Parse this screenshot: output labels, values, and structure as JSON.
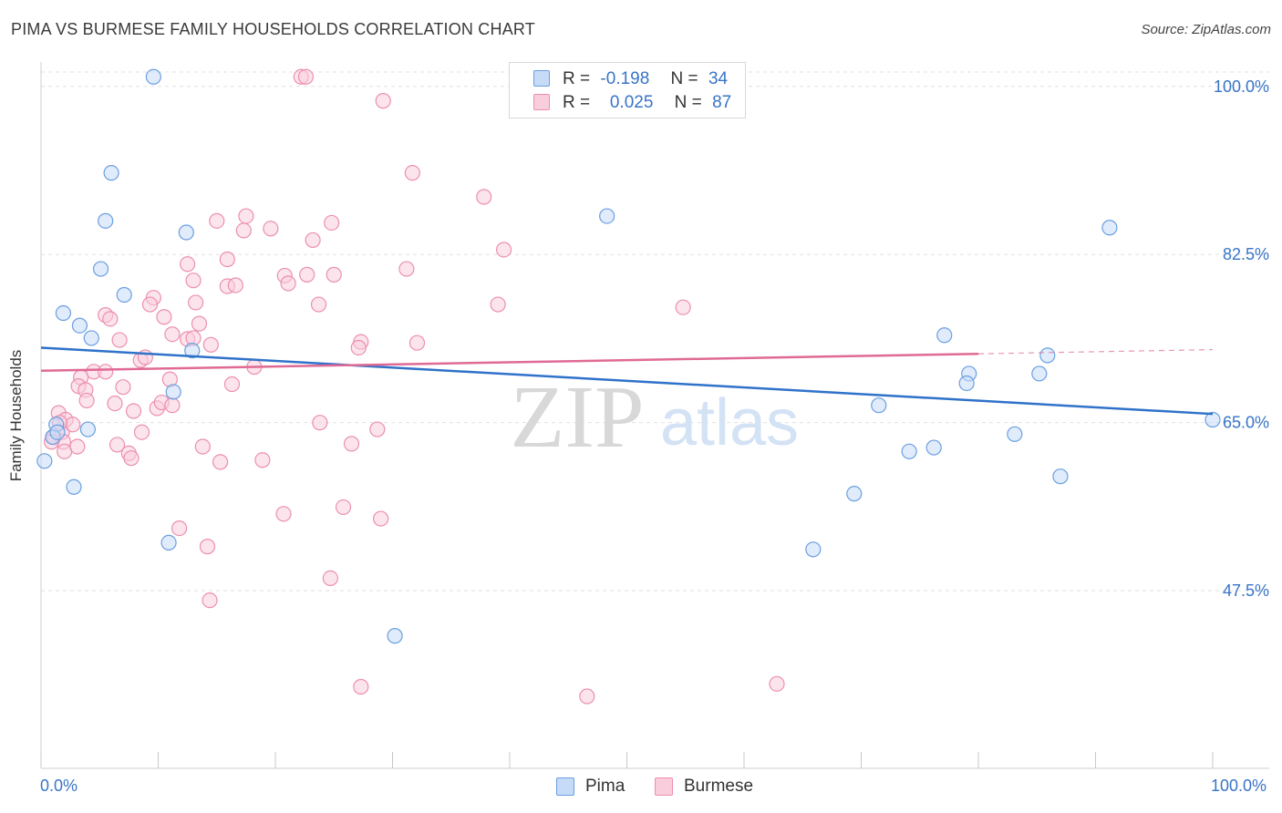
{
  "title": "PIMA VS BURMESE FAMILY HOUSEHOLDS CORRELATION CHART",
  "source": "Source: ZipAtlas.com",
  "watermark": {
    "zip": "ZIP",
    "atlas": "atlas"
  },
  "colors": {
    "pima": "#6a9fe0",
    "pima_fill": "#c6dbf7",
    "pima_line": "#2f72c9",
    "burmese": "#ec8fb0",
    "burmese_fill": "#f9cddc",
    "burmese_line": "#e06a95",
    "axis_label": "#3874c8",
    "grid": "#e0e0e0"
  },
  "legend_top": [
    {
      "series": "pima",
      "r_label": "R =",
      "r_value": "-0.198",
      "n_label": "N =",
      "n_value": "34"
    },
    {
      "series": "burmese",
      "r_label": "R =",
      "r_value": "0.025",
      "n_label": "N =",
      "n_value": "87"
    }
  ],
  "chart_data": {
    "type": "scatter",
    "title": "PIMA VS BURMESE FAMILY HOUSEHOLDS CORRELATION CHART",
    "xlabel": "",
    "ylabel": "Family Households",
    "xlim": [
      0,
      100
    ],
    "ylim": [
      31,
      101.5
    ],
    "x_tick_labels": [
      "0.0%",
      "100.0%"
    ],
    "y_ticks": [
      {
        "value": 100.0,
        "label": "100.0%"
      },
      {
        "value": 82.5,
        "label": "82.5%"
      },
      {
        "value": 65.0,
        "label": "65.0%"
      },
      {
        "value": 47.5,
        "label": "47.5%"
      }
    ],
    "grid": true,
    "legend_position": "bottom",
    "series": [
      {
        "name": "Pima",
        "key": "pima",
        "trend": {
          "x1": 0,
          "y1": 72.8,
          "x2": 100,
          "y2": 65.9,
          "dash_from": null
        },
        "points": [
          [
            9.6,
            101.0
          ],
          [
            6.0,
            91.0
          ],
          [
            5.5,
            86.0
          ],
          [
            12.4,
            84.8
          ],
          [
            5.1,
            81.0
          ],
          [
            7.1,
            78.3
          ],
          [
            1.9,
            76.4
          ],
          [
            3.3,
            75.1
          ],
          [
            4.3,
            73.8
          ],
          [
            12.9,
            72.5
          ],
          [
            11.3,
            68.2
          ],
          [
            1.3,
            64.8
          ],
          [
            4.0,
            64.3
          ],
          [
            1.0,
            63.5
          ],
          [
            0.3,
            61.0
          ],
          [
            2.8,
            58.3
          ],
          [
            10.9,
            52.5
          ],
          [
            30.2,
            42.8
          ],
          [
            48.3,
            86.5
          ],
          [
            77.1,
            74.1
          ],
          [
            79.2,
            70.1
          ],
          [
            79.0,
            69.1
          ],
          [
            85.2,
            70.1
          ],
          [
            85.9,
            72.0
          ],
          [
            71.5,
            66.8
          ],
          [
            74.1,
            62.0
          ],
          [
            76.2,
            62.4
          ],
          [
            83.1,
            63.8
          ],
          [
            91.2,
            85.3
          ],
          [
            87.0,
            59.4
          ],
          [
            69.4,
            57.6
          ],
          [
            65.9,
            51.8
          ],
          [
            100.0,
            65.3
          ],
          [
            1.4,
            64.0
          ]
        ]
      },
      {
        "name": "Burmese",
        "key": "burmese",
        "trend": {
          "x1": 0,
          "y1": 70.4,
          "x2": 100,
          "y2": 72.6,
          "dash_from": 80
        },
        "points": [
          [
            22.2,
            101.0
          ],
          [
            22.6,
            101.0
          ],
          [
            29.2,
            98.5
          ],
          [
            31.7,
            91.0
          ],
          [
            37.8,
            88.5
          ],
          [
            15.0,
            86.0
          ],
          [
            17.5,
            86.5
          ],
          [
            17.3,
            85.0
          ],
          [
            19.6,
            85.2
          ],
          [
            24.8,
            85.8
          ],
          [
            23.2,
            84.0
          ],
          [
            39.5,
            83.0
          ],
          [
            15.9,
            82.0
          ],
          [
            12.5,
            81.5
          ],
          [
            20.8,
            80.3
          ],
          [
            21.1,
            79.5
          ],
          [
            22.7,
            80.4
          ],
          [
            25.0,
            80.4
          ],
          [
            31.2,
            81.0
          ],
          [
            13.0,
            79.8
          ],
          [
            15.9,
            79.2
          ],
          [
            16.6,
            79.3
          ],
          [
            9.6,
            78.0
          ],
          [
            9.3,
            77.3
          ],
          [
            13.2,
            77.5
          ],
          [
            23.7,
            77.3
          ],
          [
            39.0,
            77.3
          ],
          [
            54.8,
            77.0
          ],
          [
            5.5,
            76.2
          ],
          [
            5.9,
            75.8
          ],
          [
            10.5,
            76.0
          ],
          [
            13.5,
            75.3
          ],
          [
            11.2,
            74.2
          ],
          [
            12.5,
            73.7
          ],
          [
            13.0,
            73.8
          ],
          [
            14.5,
            73.1
          ],
          [
            27.3,
            73.4
          ],
          [
            27.1,
            72.8
          ],
          [
            32.1,
            73.3
          ],
          [
            6.7,
            73.6
          ],
          [
            8.5,
            71.5
          ],
          [
            8.9,
            71.8
          ],
          [
            18.2,
            70.8
          ],
          [
            4.5,
            70.3
          ],
          [
            5.5,
            70.3
          ],
          [
            3.4,
            69.7
          ],
          [
            3.2,
            68.8
          ],
          [
            3.8,
            68.4
          ],
          [
            7.0,
            68.7
          ],
          [
            11.0,
            69.5
          ],
          [
            16.3,
            69.0
          ],
          [
            3.9,
            67.3
          ],
          [
            6.3,
            67.0
          ],
          [
            9.9,
            66.5
          ],
          [
            10.3,
            67.1
          ],
          [
            11.2,
            66.8
          ],
          [
            7.9,
            66.2
          ],
          [
            1.5,
            66.0
          ],
          [
            2.1,
            65.3
          ],
          [
            1.8,
            64.0
          ],
          [
            2.7,
            64.8
          ],
          [
            1.6,
            65.0
          ],
          [
            1.1,
            63.5
          ],
          [
            1.9,
            63.0
          ],
          [
            0.9,
            63.0
          ],
          [
            8.6,
            64.0
          ],
          [
            6.5,
            62.7
          ],
          [
            2.0,
            62.0
          ],
          [
            3.1,
            62.5
          ],
          [
            7.5,
            61.8
          ],
          [
            7.7,
            61.3
          ],
          [
            13.8,
            62.5
          ],
          [
            15.3,
            60.9
          ],
          [
            18.9,
            61.1
          ],
          [
            23.8,
            65.0
          ],
          [
            26.5,
            62.8
          ],
          [
            11.8,
            54.0
          ],
          [
            20.7,
            55.5
          ],
          [
            25.8,
            56.2
          ],
          [
            29.0,
            55.0
          ],
          [
            14.2,
            52.1
          ],
          [
            24.7,
            48.8
          ],
          [
            14.4,
            46.5
          ],
          [
            27.3,
            37.5
          ],
          [
            46.6,
            36.5
          ],
          [
            62.8,
            37.8
          ],
          [
            28.7,
            64.3
          ]
        ]
      }
    ]
  }
}
